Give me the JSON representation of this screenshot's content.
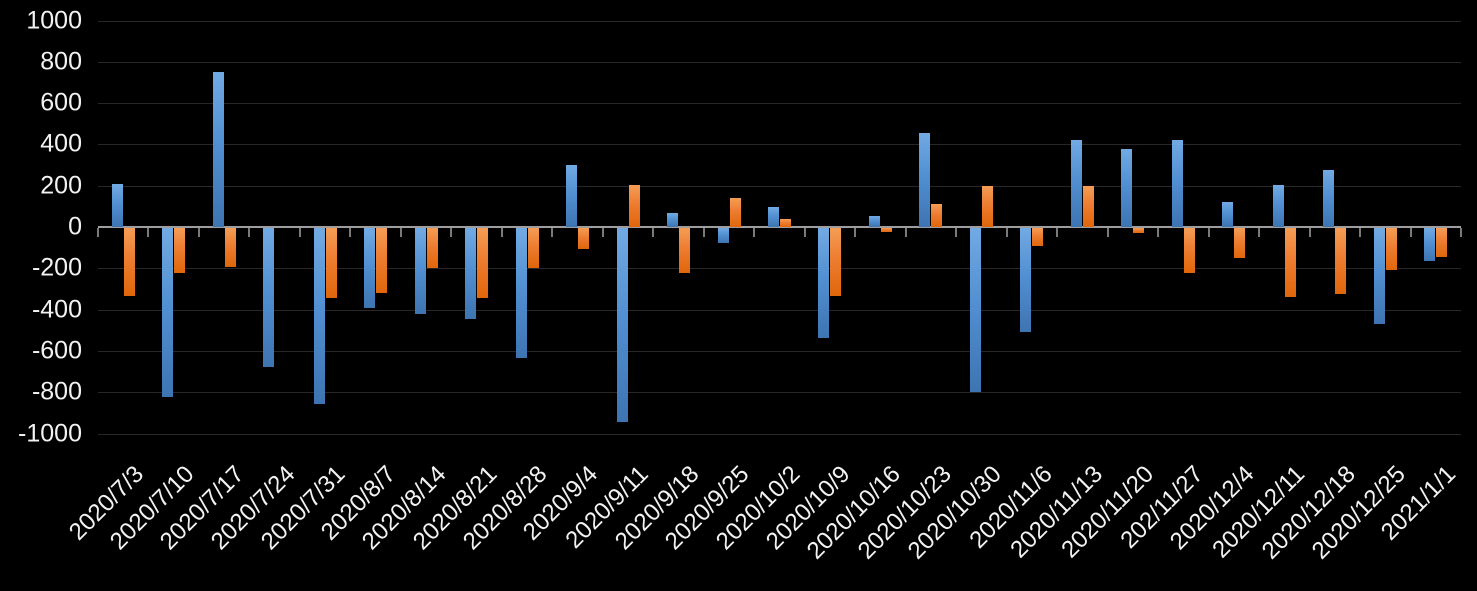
{
  "chart_data": {
    "type": "bar",
    "title": "",
    "xlabel": "",
    "ylabel": "",
    "legend": "none",
    "grid": "on",
    "background_color": "#000000",
    "text_color": "#f2f2f2",
    "ylim": [
      -1000,
      1000
    ],
    "ytick_step": 200,
    "y_ticks": [
      "1000",
      "800",
      "600",
      "400",
      "200",
      "0",
      "-200",
      "-400",
      "-600",
      "-800",
      "-1000"
    ],
    "categories": [
      "2020/7/3",
      "2020/7/10",
      "2020/7/17",
      "2020/7/24",
      "2020/7/31",
      "2020/8/7",
      "2020/8/14",
      "2020/8/21",
      "2020/8/28",
      "2020/9/4",
      "2020/9/11",
      "2020/9/18",
      "2020/9/25",
      "2020/10/2",
      "2020/10/9",
      "2020/10/16",
      "2020/10/23",
      "2020/10/30",
      "2020/11/6",
      "2020/11/13",
      "2020/11/20",
      "202/11/27",
      "2020/12/4",
      "2020/12/11",
      "2020/12/18",
      "2020/12/25",
      "2021/1/1"
    ],
    "series": [
      {
        "name": "blue",
        "color": "#5B9BD5",
        "values": [
          210,
          -820,
          750,
          -675,
          -850,
          -385,
          -415,
          -440,
          -630,
          300,
          -940,
          70,
          -75,
          95,
          -535,
          55,
          455,
          -795,
          -505,
          420,
          380,
          420,
          120,
          205,
          275,
          -465,
          -160
        ]
      },
      {
        "name": "orange",
        "color": "#ED7D31",
        "values": [
          -330,
          -220,
          -190,
          0,
          -340,
          -315,
          -195,
          -340,
          -195,
          -100,
          205,
          -220,
          140,
          40,
          -330,
          -20,
          110,
          200,
          -85,
          200,
          -25,
          -220,
          -145,
          -335,
          -320,
          -205,
          -140
        ]
      }
    ]
  }
}
